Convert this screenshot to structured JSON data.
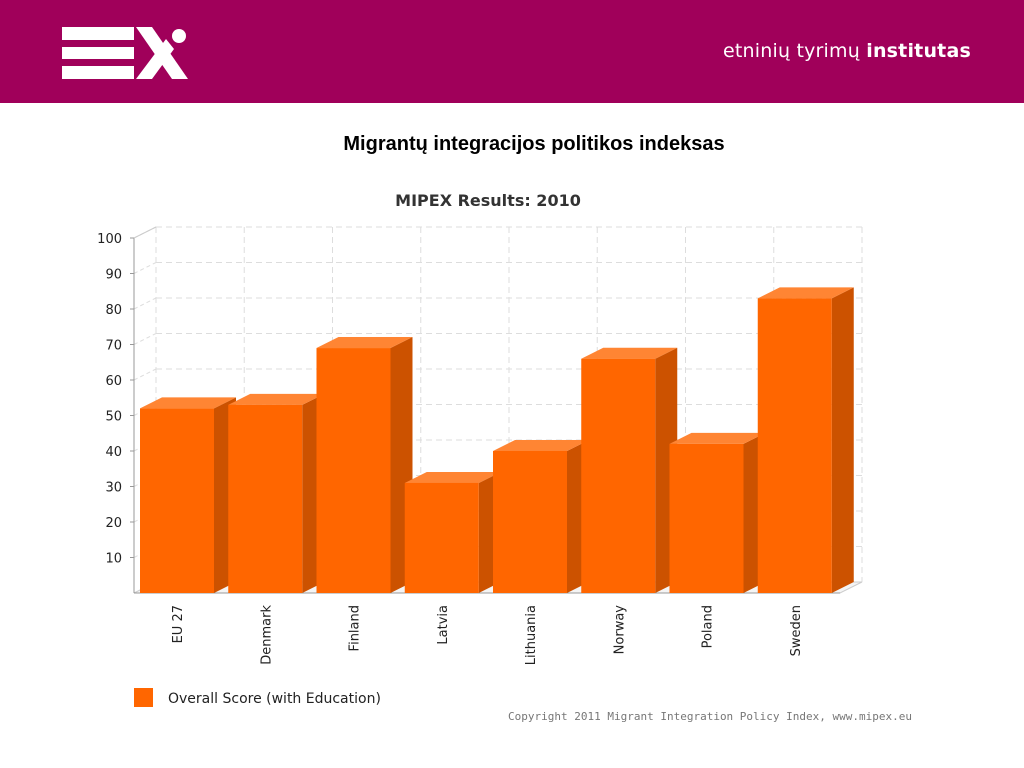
{
  "header": {
    "institute_regular": "etninių tyrimų ",
    "institute_bold": "institutas",
    "background_color": "#a0005a"
  },
  "slide_title": "Migrantų integracijos politikos indeksas",
  "chart_data": {
    "type": "bar",
    "title": "MIPEX Results: 2010",
    "categories": [
      "EU 27",
      "Denmark",
      "Finland",
      "Latvia",
      "Lithuania",
      "Norway",
      "Poland",
      "Sweden"
    ],
    "series": [
      {
        "name": "Overall Score (with Education)",
        "values": [
          52,
          53,
          69,
          31,
          40,
          66,
          42,
          83
        ],
        "color": "#ff6600"
      }
    ],
    "ylim": [
      0,
      100
    ],
    "yticks": [
      10,
      20,
      30,
      40,
      50,
      60,
      70,
      80,
      90,
      100
    ],
    "grid": true,
    "legend": "bottom-left",
    "xlabel": "",
    "ylabel": "",
    "copyright": "Copyright 2011 Migrant Integration Policy Index, www.mipex.eu"
  }
}
